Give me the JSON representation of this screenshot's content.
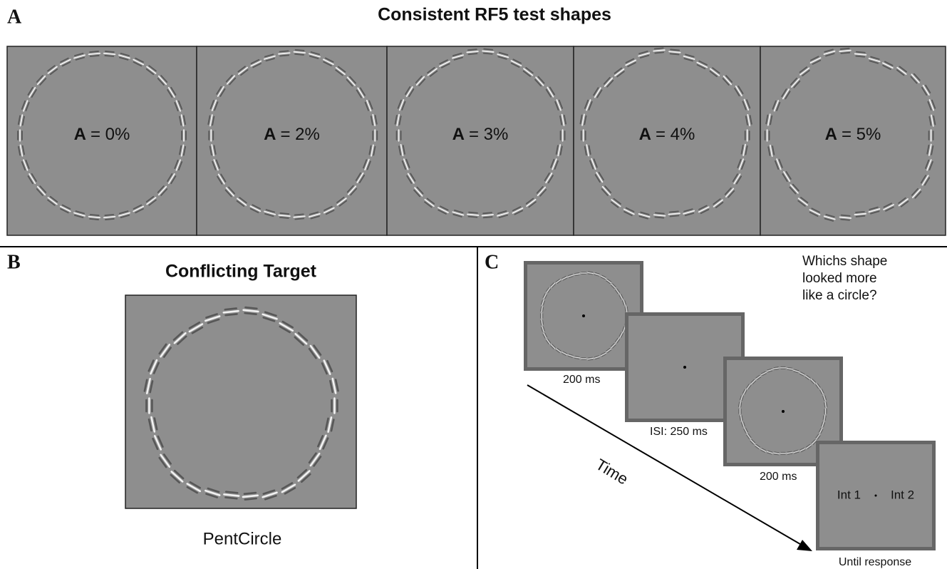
{
  "panel_a": {
    "label": "A",
    "title": "Consistent RF5 test shapes",
    "shapes": [
      {
        "symbol": "A",
        "amplitude": "= 0%"
      },
      {
        "symbol": "A",
        "amplitude": "= 2%"
      },
      {
        "symbol": "A",
        "amplitude": "= 3%"
      },
      {
        "symbol": "A",
        "amplitude": "= 4%"
      },
      {
        "symbol": "A",
        "amplitude": "= 5%"
      }
    ]
  },
  "panel_b": {
    "label": "B",
    "title": "Conflicting Target",
    "caption": "PentCircle"
  },
  "panel_c": {
    "label": "C",
    "question": [
      "Whichs shape",
      "looked more",
      "like a circle?"
    ],
    "time": "Time",
    "frames": [
      {
        "caption": "200 ms"
      },
      {
        "caption": "ISI: 250 ms"
      },
      {
        "caption": "200 ms"
      },
      {
        "caption": "Until response",
        "left": "Int 1",
        "right": "Int 2"
      }
    ]
  }
}
